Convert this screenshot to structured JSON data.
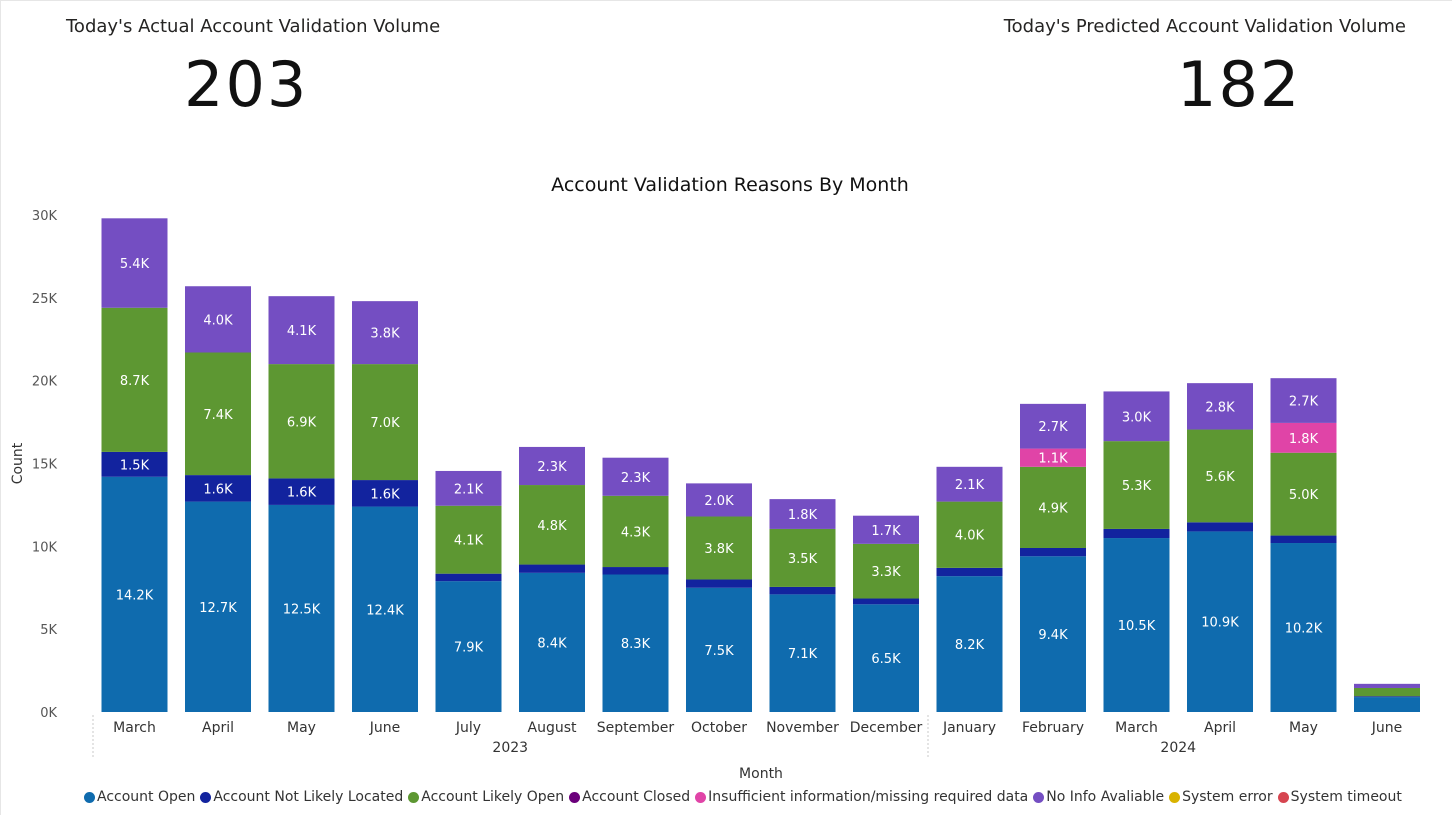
{
  "kpis": {
    "actual": {
      "title": "Today's Actual Account Validation Volume",
      "value": "203"
    },
    "predicted": {
      "title": "Today's Predicted Account Validation Volume",
      "value": "182"
    }
  },
  "chart_data": {
    "type": "bar",
    "stacked": true,
    "title": "Account Validation Reasons By Month",
    "xlabel": "Month",
    "ylabel": "Count",
    "ylim": [
      0,
      30000
    ],
    "yticks": [
      0,
      5000,
      10000,
      15000,
      20000,
      25000,
      30000
    ],
    "ytick_labels": [
      "0K",
      "5K",
      "10K",
      "15K",
      "20K",
      "25K",
      "30K"
    ],
    "categories": [
      "March",
      "April",
      "May",
      "June",
      "July",
      "August",
      "September",
      "October",
      "November",
      "December",
      "January",
      "February",
      "March",
      "April",
      "May",
      "June"
    ],
    "year_groups": [
      {
        "label": "2023",
        "start": 0,
        "end": 9
      },
      {
        "label": "2024",
        "start": 10,
        "end": 15
      }
    ],
    "legend_position": "bottom",
    "series": [
      {
        "name": "Account Open",
        "color": "#0F6BAE",
        "values": [
          14200,
          12700,
          12500,
          12400,
          7900,
          8400,
          8300,
          7500,
          7100,
          6500,
          8200,
          9400,
          10500,
          10900,
          10200,
          900
        ],
        "labels": [
          "14.2K",
          "12.7K",
          "12.5K",
          "12.4K",
          "7.9K",
          "8.4K",
          "8.3K",
          "7.5K",
          "7.1K",
          "6.5K",
          "8.2K",
          "9.4K",
          "10.5K",
          "10.9K",
          "10.2K",
          ""
        ]
      },
      {
        "name": "Account Not Likely Located",
        "color": "#12239E",
        "values": [
          1500,
          1600,
          1600,
          1600,
          450,
          500,
          450,
          500,
          450,
          350,
          500,
          500,
          550,
          550,
          450,
          50
        ],
        "labels": [
          "1.5K",
          "1.6K",
          "1.6K",
          "1.6K",
          "",
          "",
          "",
          "",
          "",
          "",
          "",
          "",
          "",
          "",
          "",
          ""
        ]
      },
      {
        "name": "Account Likely Open",
        "color": "#5D9732",
        "values": [
          8700,
          7400,
          6900,
          7000,
          4100,
          4800,
          4300,
          3800,
          3500,
          3300,
          4000,
          4900,
          5300,
          5600,
          5000,
          500
        ],
        "labels": [
          "8.7K",
          "7.4K",
          "6.9K",
          "7.0K",
          "4.1K",
          "4.8K",
          "4.3K",
          "3.8K",
          "3.5K",
          "3.3K",
          "4.0K",
          "4.9K",
          "5.3K",
          "5.6K",
          "5.0K",
          ""
        ]
      },
      {
        "name": "Account Closed",
        "color": "#6B007B",
        "values": [
          0,
          0,
          0,
          0,
          0,
          0,
          0,
          0,
          0,
          0,
          0,
          0,
          0,
          0,
          0,
          0
        ],
        "labels": [
          "",
          "",
          "",
          "",
          "",
          "",
          "",
          "",
          "",
          "",
          "",
          "",
          "",
          "",
          "",
          ""
        ]
      },
      {
        "name": "Insufficient information/missing required data",
        "color": "#E044A7",
        "values": [
          0,
          0,
          0,
          0,
          0,
          0,
          0,
          0,
          0,
          0,
          0,
          1100,
          0,
          0,
          1800,
          0
        ],
        "labels": [
          "",
          "",
          "",
          "",
          "",
          "",
          "",
          "",
          "",
          "",
          "",
          "1.1K",
          "",
          "",
          "1.8K",
          ""
        ]
      },
      {
        "name": "No Info Avaliable",
        "color": "#744EC2",
        "values": [
          5400,
          4000,
          4100,
          3800,
          2100,
          2300,
          2300,
          2000,
          1800,
          1700,
          2100,
          2700,
          3000,
          2800,
          2700,
          250
        ],
        "labels": [
          "5.4K",
          "4.0K",
          "4.1K",
          "3.8K",
          "2.1K",
          "2.3K",
          "2.3K",
          "2.0K",
          "1.8K",
          "1.7K",
          "2.1K",
          "2.7K",
          "3.0K",
          "2.8K",
          "2.7K",
          ""
        ]
      },
      {
        "name": "System error",
        "color": "#D9B300",
        "values": [
          0,
          0,
          0,
          0,
          0,
          0,
          0,
          0,
          0,
          0,
          0,
          0,
          0,
          0,
          0,
          0
        ],
        "labels": [
          "",
          "",
          "",
          "",
          "",
          "",
          "",
          "",
          "",
          "",
          "",
          "",
          "",
          "",
          "",
          ""
        ]
      },
      {
        "name": "System timeout",
        "color": "#D64550",
        "values": [
          0,
          0,
          0,
          0,
          0,
          0,
          0,
          0,
          0,
          0,
          0,
          0,
          0,
          0,
          0,
          0
        ],
        "labels": [
          "",
          "",
          "",
          "",
          "",
          "",
          "",
          "",
          "",
          "",
          "",
          "",
          "",
          "",
          "",
          ""
        ]
      }
    ]
  }
}
